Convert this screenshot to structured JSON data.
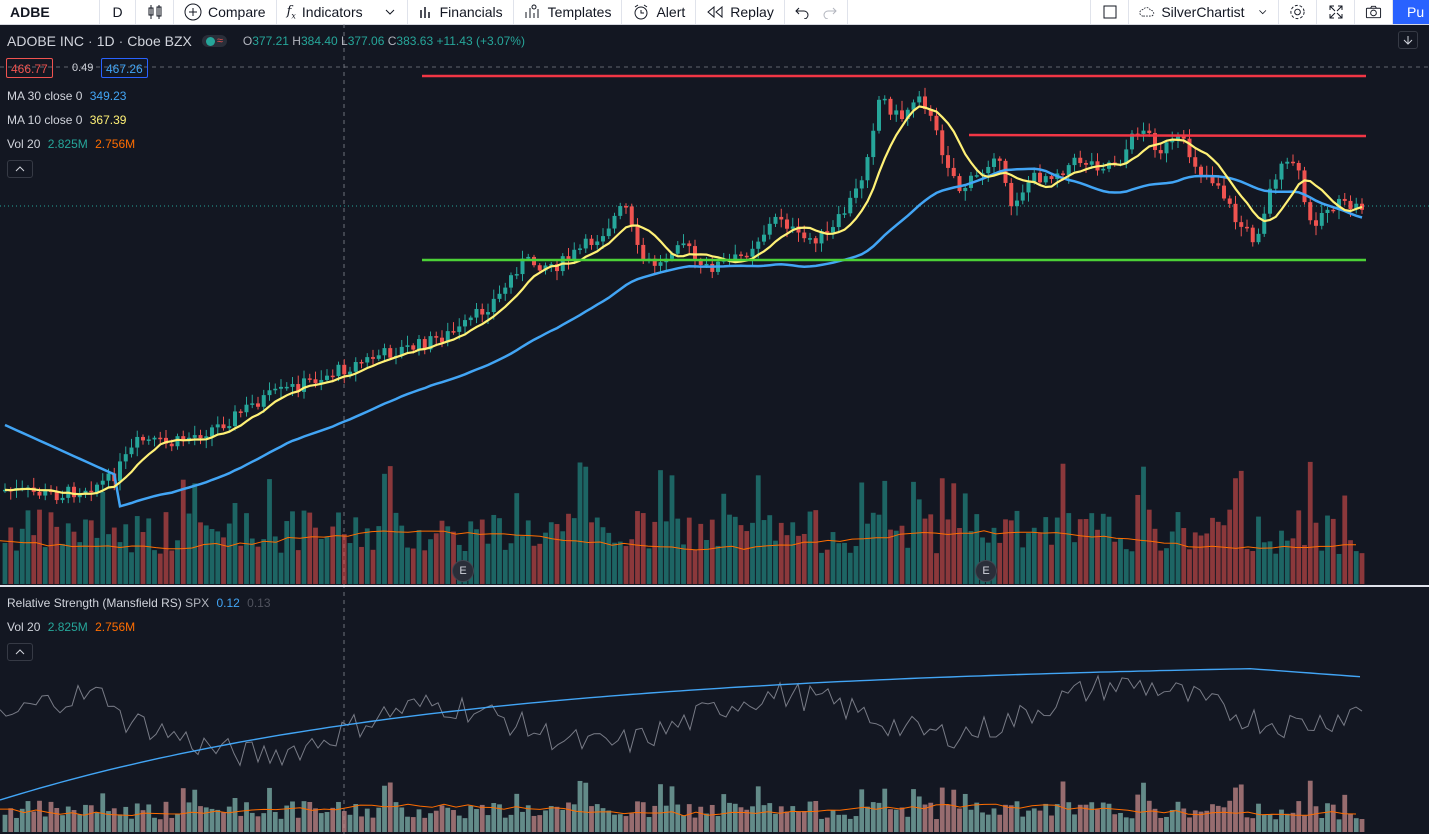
{
  "toolbar": {
    "symbol": "ADBE",
    "interval": "D",
    "compare": "Compare",
    "indicators": "Indicators",
    "financials": "Financials",
    "templates": "Templates",
    "alert": "Alert",
    "replay": "Replay",
    "layout_name": "SilverChartist",
    "publish": "Pu"
  },
  "legend": {
    "symbol_name": "ADOBE INC",
    "interval": "1D",
    "exchange": "Cboe BZX",
    "open_label": "O",
    "open": "377.21",
    "high_label": "H",
    "high": "384.40",
    "low_label": "L",
    "low": "377.06",
    "close_label": "C",
    "close": "383.63",
    "change": "+11.43 (+3.07%)",
    "bid": "466.77",
    "spread": "0.49",
    "ask": "467.26",
    "ma30_label": "MA 30 close 0",
    "ma30_value": "349.23",
    "ma10_label": "MA 10 close 0",
    "ma10_value": "367.39",
    "vol_label": "Vol 20",
    "vol_value": "2.825M",
    "vol_ma_value": "2.756M"
  },
  "rs_pane": {
    "label": "Relative Strength (Mansfield RS)",
    "benchmark": "SPX",
    "value": "0.12",
    "value2": "0.13",
    "vol_label": "Vol 20",
    "vol_value": "2.825M",
    "vol_ma_value": "2.756M"
  },
  "earnings_marker": "E",
  "colors": {
    "background": "#131722",
    "up": "#26a69a",
    "down": "#ef5350",
    "ma30": "#42a5f5",
    "ma10": "#fff176",
    "resistance": "#f23645",
    "support": "#4cd137",
    "vol_ma": "#ff6d00",
    "rs_line": "#787b86"
  }
}
